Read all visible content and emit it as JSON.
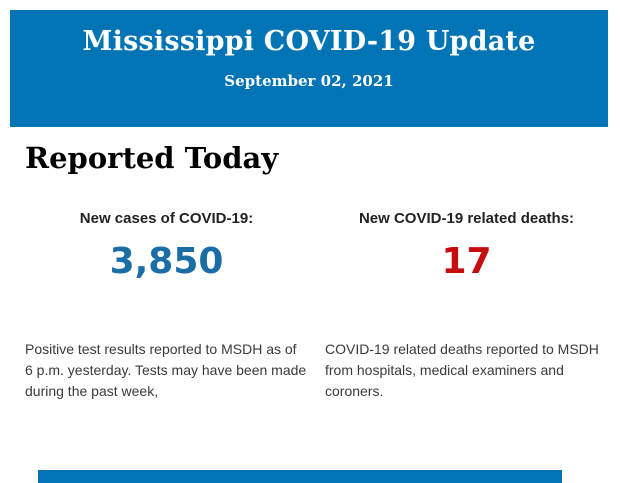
{
  "header": {
    "title": "Mississippi COVID-19 Update",
    "date": "September 02, 2021",
    "bg_color": "#0074b4",
    "text_color": "#ffffff"
  },
  "main": {
    "section_title": "Reported Today",
    "stats": [
      {
        "label": "New cases of COVID-19:",
        "value": "3,850",
        "value_color": "#1a6ea5",
        "description": "Positive test results reported to MSDH as of 6 p.m. yesterday. Tests may have been made during the past week,"
      },
      {
        "label": "New COVID-19 related deaths:",
        "value": "17",
        "value_color": "#c60c0c",
        "description": "COVID-19 related deaths reported to MSDH from hospitals, medical examiners and coroners."
      }
    ]
  },
  "footer": {
    "bar_color": "#0074b4"
  }
}
